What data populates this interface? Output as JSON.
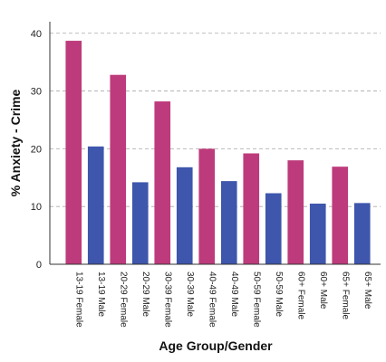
{
  "chart_data": {
    "type": "bar",
    "xlabel": "Age Group/Gender",
    "ylabel": "% Anxiety - Crime",
    "ylim": [
      0,
      42
    ],
    "yticks": [
      0,
      10,
      20,
      30,
      40
    ],
    "grid": "horizontal dashed",
    "legend": "none",
    "categories": [
      "13-19 Female",
      "13-19 Male",
      "20-29 Female",
      "20-29 Male",
      "30-39 Female",
      "30-39 Male",
      "40-49 Female",
      "40-49 Male",
      "50-59 Female",
      "50-59 Male",
      "60+ Female",
      "60+ Male",
      "65+ Female",
      "65+ Male"
    ],
    "values": [
      38.7,
      20.4,
      32.8,
      14.2,
      28.2,
      16.8,
      20.0,
      14.4,
      19.2,
      12.3,
      18.0,
      10.5,
      16.9,
      10.6
    ],
    "colors": {
      "female": "#bd3b7c",
      "male": "#3e56ac"
    }
  }
}
